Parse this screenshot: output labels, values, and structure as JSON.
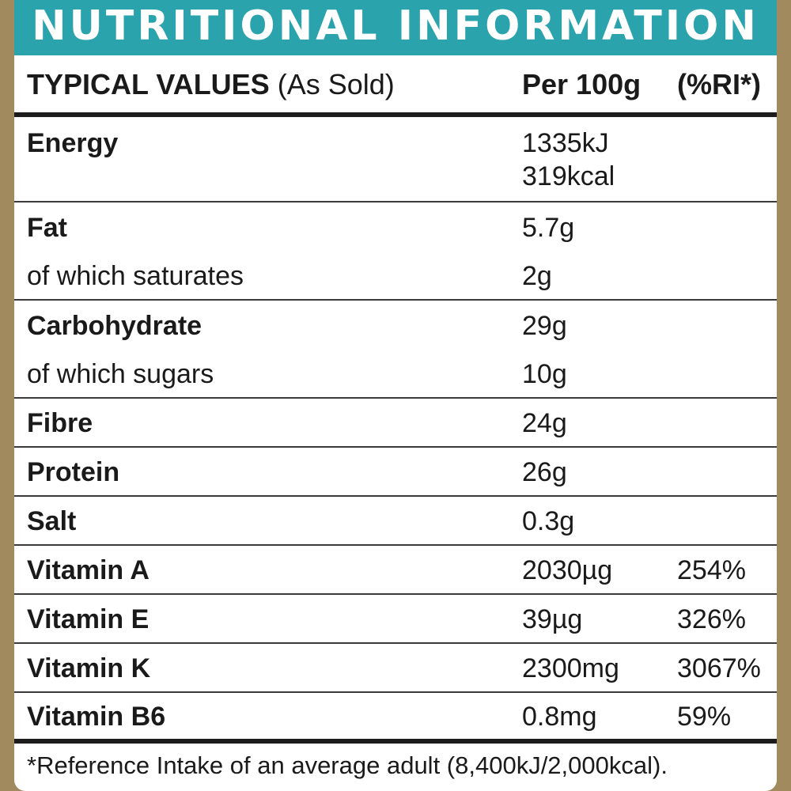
{
  "banner_title": "NUTRITIONAL INFORMATION",
  "header": {
    "typical_values": "TYPICAL VALUES",
    "as_sold": " (As Sold)",
    "per_100g": "Per 100g",
    "ri": "(%RI*)"
  },
  "rows": [
    {
      "name": "Energy",
      "value": "1335kJ",
      "value2": "319kcal",
      "ri": ""
    },
    {
      "name": "Fat",
      "value": "5.7g",
      "ri": ""
    },
    {
      "name": "of which saturates",
      "value": "2g",
      "ri": ""
    },
    {
      "name": "Carbohydrate",
      "value": "29g",
      "ri": ""
    },
    {
      "name": "of which sugars",
      "value": "10g",
      "ri": ""
    },
    {
      "name": "Fibre",
      "value": "24g",
      "ri": ""
    },
    {
      "name": "Protein",
      "value": "26g",
      "ri": ""
    },
    {
      "name": "Salt",
      "value": "0.3g",
      "ri": ""
    },
    {
      "name": "Vitamin A",
      "value": "2030µg",
      "ri": "254%"
    },
    {
      "name": "Vitamin E",
      "value": "39µg",
      "ri": "326%"
    },
    {
      "name": "Vitamin K",
      "value": "2300mg",
      "ri": "3067%"
    },
    {
      "name": "Vitamin B6",
      "value": "0.8mg",
      "ri": "59%"
    }
  ],
  "footnote": "*Reference Intake of an average adult (8,400kJ/2,000kcal)."
}
